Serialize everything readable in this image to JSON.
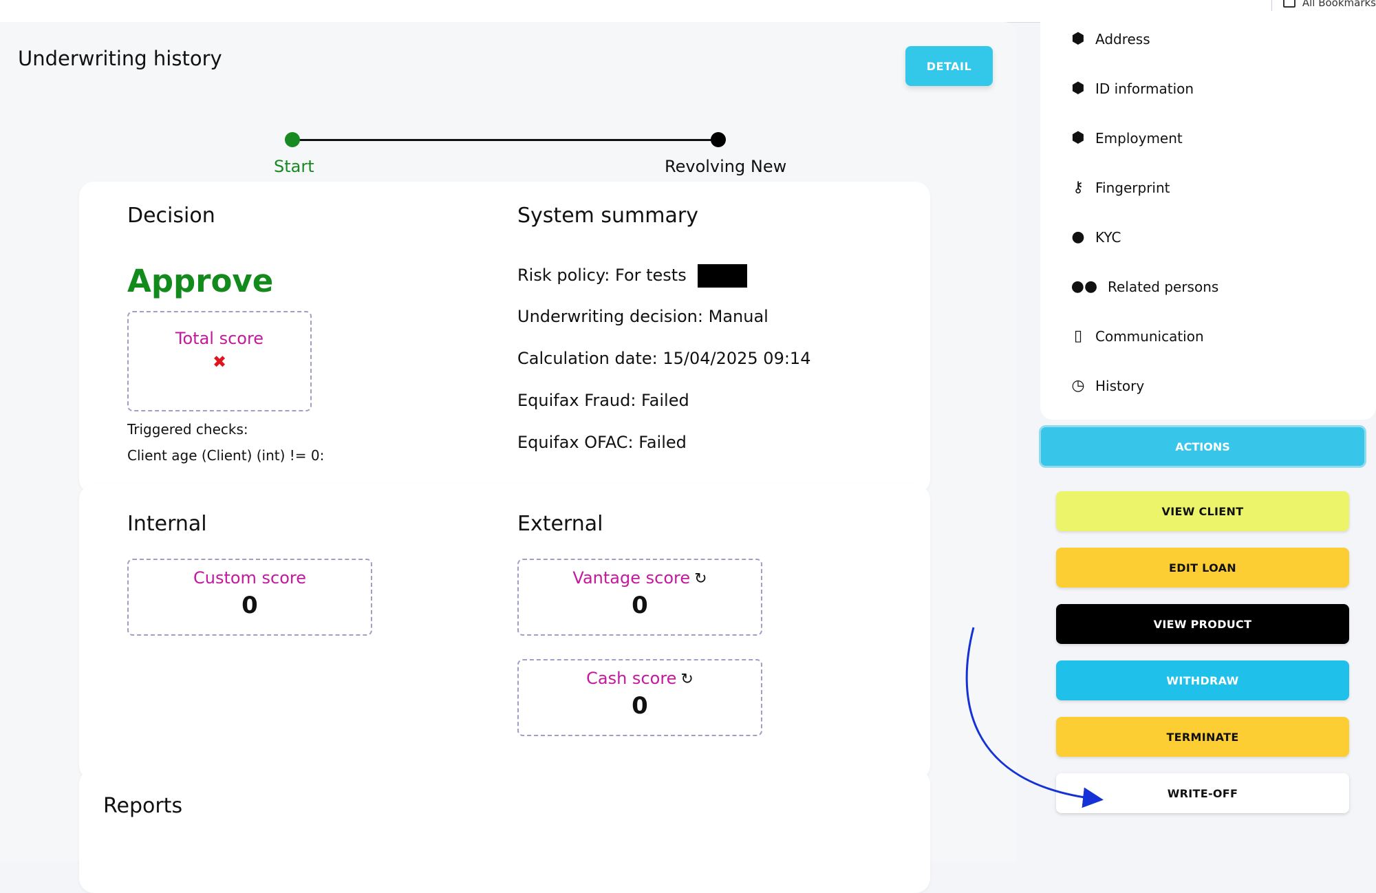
{
  "browser": {
    "bookmarks_label": "All Bookmarks"
  },
  "page": {
    "title": "Underwriting history",
    "detail_label": "DETAIL"
  },
  "timeline": {
    "start_label": "Start",
    "end_label": "Revolving New",
    "start_color": "#188a22",
    "end_color": "#000000"
  },
  "decision": {
    "heading": "Decision",
    "value": "Approve",
    "value_color": "#128a1c",
    "total_score_label": "Total score",
    "total_score_mark": "✖",
    "triggered_checks_label": "Triggered checks:",
    "triggered_check_item": "Client age (Client) (int) != 0:"
  },
  "system_summary": {
    "heading": "System summary",
    "risk_policy": "Risk policy: For tests",
    "underwriting_decision": "Underwriting decision: Manual",
    "calculation_date": "Calculation date: 15/04/2025 09:14",
    "equifax_fraud": "Equifax Fraud: Failed",
    "equifax_ofac": "Equifax OFAC: Failed"
  },
  "internal": {
    "heading": "Internal",
    "custom_score_label": "Custom score",
    "custom_score_value": "0"
  },
  "external": {
    "heading": "External",
    "vantage_score_label": "Vantage score",
    "vantage_score_value": "0",
    "cash_score_label": "Cash score",
    "cash_score_value": "0",
    "refresh_icon": "refresh-icon"
  },
  "reports": {
    "heading": "Reports"
  },
  "sidebar": {
    "items": [
      {
        "label": "Address",
        "icon": "cube-icon"
      },
      {
        "label": "ID information",
        "icon": "cube-icon"
      },
      {
        "label": "Employment",
        "icon": "cube-icon"
      },
      {
        "label": "Fingerprint",
        "icon": "key-icon"
      },
      {
        "label": "KYC",
        "icon": "user-icon"
      },
      {
        "label": "Related persons",
        "icon": "users-icon"
      },
      {
        "label": "Communication",
        "icon": "phone-icon"
      },
      {
        "label": "History",
        "icon": "clock-icon"
      }
    ]
  },
  "actions": {
    "header_label": "ACTIONS",
    "view_client": "VIEW CLIENT",
    "edit_loan": "EDIT LOAN",
    "view_product": "VIEW PRODUCT",
    "withdraw": "WITHDRAW",
    "terminate": "TERMINATE",
    "write_off": "WRITE-OFF"
  }
}
